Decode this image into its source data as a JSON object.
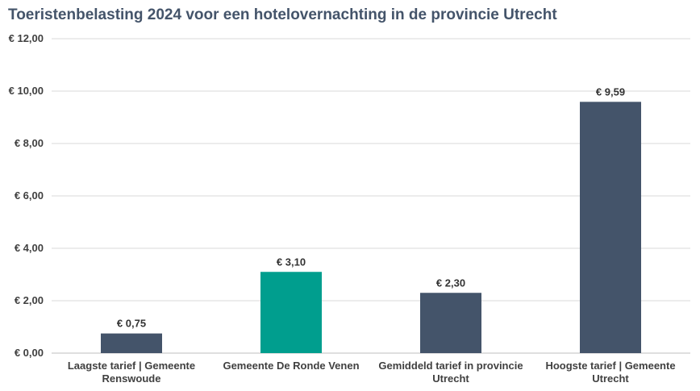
{
  "chart_data": {
    "type": "bar",
    "title": "Toeristenbelasting 2024 voor een hotelovernachting in de provincie Utrecht",
    "categories": [
      [
        "Laagste tarief | Gemeente",
        "Renswoude"
      ],
      [
        "Gemeente De Ronde Venen"
      ],
      [
        "Gemidd eld tarief in provincie",
        "Utrecht"
      ],
      [
        "Hoogste tarief | Gemeente",
        "Utrecht"
      ]
    ],
    "values": [
      0.75,
      3.1,
      2.3,
      9.59
    ],
    "value_labels": [
      "€ 0,75",
      "€ 3,10",
      "€ 2,30",
      "€ 9,59"
    ],
    "bar_colors": [
      "#44546a",
      "#009e8e",
      "#44546a",
      "#44546a"
    ],
    "ylim": [
      0,
      12
    ],
    "yticks": [
      0,
      2,
      4,
      6,
      8,
      10,
      12
    ],
    "ytick_labels": [
      "€ 0,00",
      "€ 2,00",
      "€ 4,00",
      "€ 6,00",
      "€ 8,00",
      "€ 10,00",
      "€ 12,00"
    ],
    "grid": true,
    "legend": "none"
  }
}
